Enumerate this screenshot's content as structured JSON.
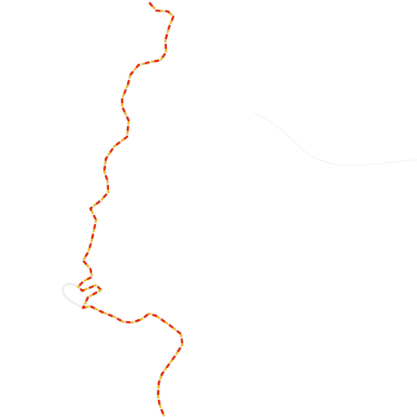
{
  "map": {
    "style": {
      "background": "#ffffff",
      "route_casing": "#eeeeee",
      "route_dash_red": "#e32400",
      "route_dash_yellow": "#f2b400",
      "faint_road": "#f2f2f2"
    },
    "layers": [
      {
        "name": "faint-road",
        "kind": "road"
      },
      {
        "name": "route-casing",
        "kind": "route"
      },
      {
        "name": "route-dashes",
        "kind": "route"
      }
    ]
  }
}
